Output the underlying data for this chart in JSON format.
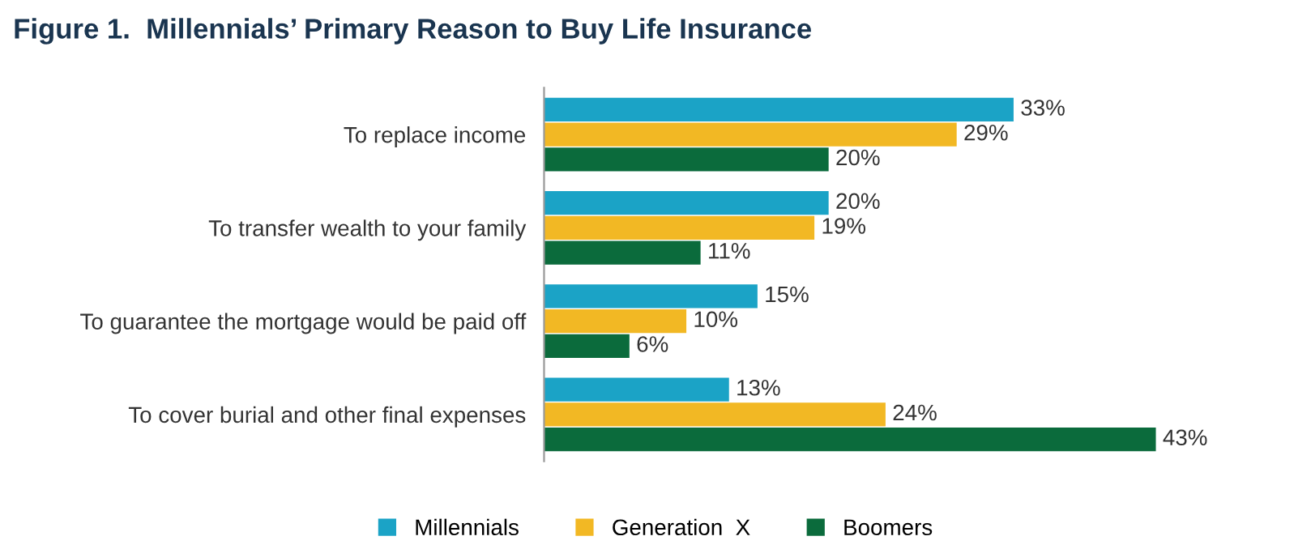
{
  "chart_data": {
    "type": "bar",
    "orientation": "horizontal",
    "title": "Figure 1.  Millennials’ Primary Reason to Buy Life Insurance",
    "categories": [
      "To replace income",
      "To transfer wealth to your family",
      "To guarantee the mortgage would be paid off",
      "To cover burial and other final expenses"
    ],
    "series": [
      {
        "name": "Millennials",
        "color": "#1ba3c6",
        "values": [
          33,
          20,
          15,
          13
        ],
        "value_labels": [
          "33%",
          "20%",
          "15%",
          "13%"
        ]
      },
      {
        "name": "Generation  X",
        "color": "#f2b824",
        "values": [
          29,
          19,
          10,
          24
        ],
        "value_labels": [
          "29%",
          "19%",
          "10%",
          "24%"
        ]
      },
      {
        "name": "Boomers",
        "color": "#0b6b3c",
        "values": [
          20,
          11,
          6,
          43
        ],
        "value_labels": [
          "20%",
          "11%",
          "6%",
          "43%"
        ]
      }
    ],
    "legend": "bottom",
    "grid": false
  }
}
